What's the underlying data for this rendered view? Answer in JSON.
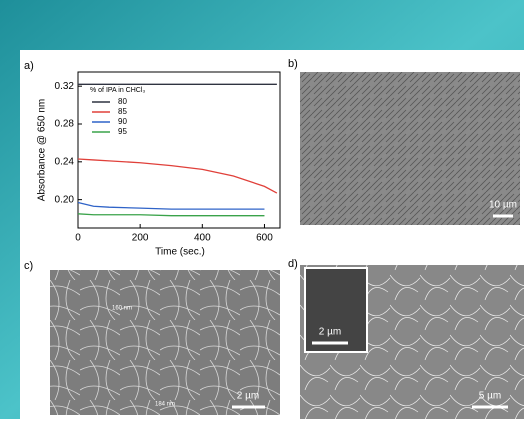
{
  "chart_data": {
    "type": "line",
    "x_label": "Time (sec.)",
    "y_label": "Absorbance @ 650 nm",
    "legend_title": "% of IPA in CHCl₃",
    "x": [
      0,
      50,
      100,
      200,
      300,
      400,
      500,
      600,
      640
    ],
    "series": [
      {
        "name": "80",
        "color": "#2f3340",
        "values": [
          0.322,
          0.322,
          0.322,
          0.322,
          0.322,
          0.322,
          0.322,
          0.322,
          0.322
        ]
      },
      {
        "name": "85",
        "color": "#e0403a",
        "values": [
          0.243,
          0.242,
          0.241,
          0.239,
          0.236,
          0.232,
          0.225,
          0.214,
          0.207
        ]
      },
      {
        "name": "90",
        "color": "#2f63c8",
        "values": [
          0.197,
          0.193,
          0.192,
          0.191,
          0.19,
          0.19,
          0.19,
          0.19,
          null
        ]
      },
      {
        "name": "95",
        "color": "#3aa34a",
        "values": [
          0.185,
          0.184,
          0.184,
          0.184,
          0.183,
          0.183,
          0.183,
          0.183,
          null
        ]
      }
    ],
    "xlim": [
      0,
      650
    ],
    "xticks": [
      0,
      200,
      400,
      600
    ],
    "ylim": [
      0.17,
      0.335
    ],
    "yticks": [
      {
        "value": 0.2,
        "label": "0.20"
      },
      0.24,
      0.28,
      0.32
    ]
  },
  "panel_labels": [
    "a)",
    "b)",
    "c)",
    "d)"
  ],
  "scale_bars": [
    "10 µm",
    "2 µm",
    "2 µm",
    "5 µm"
  ],
  "annotations": [
    "160 nm",
    "184 nm"
  ]
}
